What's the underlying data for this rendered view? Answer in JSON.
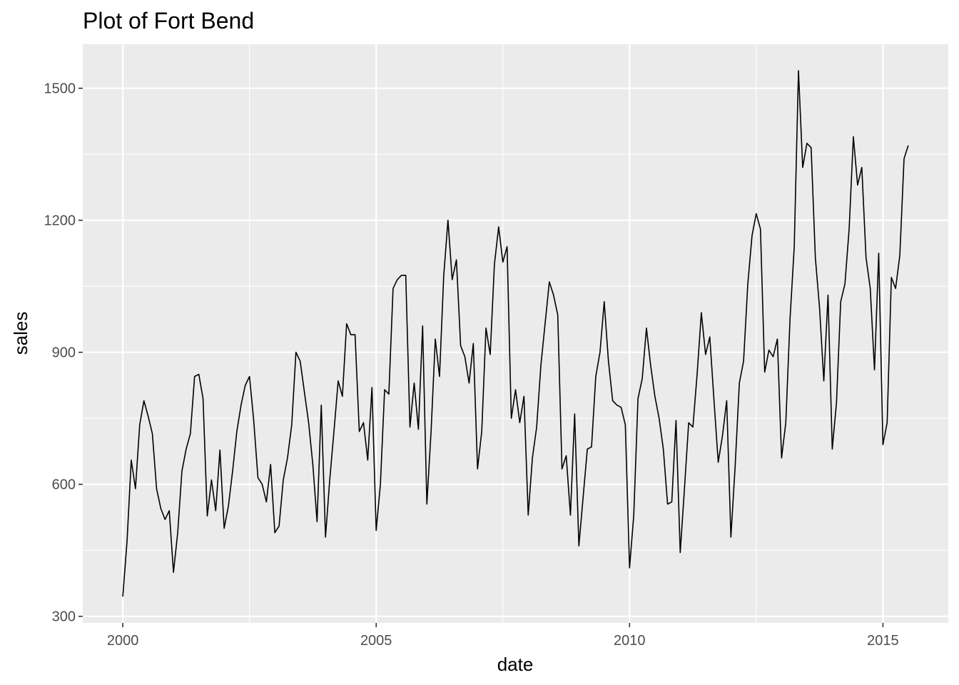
{
  "chart_data": {
    "type": "line",
    "title": "Plot of Fort Bend",
    "xlabel": "date",
    "ylabel": "sales",
    "x_ticks": [
      2000,
      2005,
      2010,
      2015
    ],
    "x_tick_labels": [
      "2000",
      "2005",
      "2010",
      "2015"
    ],
    "y_ticks": [
      300,
      600,
      900,
      1200,
      1500
    ],
    "y_tick_labels": [
      "300",
      "600",
      "900",
      "1200",
      "1500"
    ],
    "xlim": [
      1999.21,
      2016.29
    ],
    "ylim": [
      285,
      1600
    ],
    "grid": true,
    "legend": "none",
    "colors": {
      "panel_background": "#ebebeb",
      "grid": "#ffffff",
      "line": "#000000",
      "tick_text": "#4d4d4d"
    },
    "series": [
      {
        "x_start": 2000.0,
        "step": 0.0833333,
        "values": [
          345,
          470,
          655,
          590,
          735,
          790,
          755,
          715,
          590,
          545,
          520,
          540,
          400,
          490,
          630,
          680,
          715,
          845,
          850,
          795,
          528,
          610,
          540,
          678,
          500,
          550,
          630,
          720,
          780,
          825,
          845,
          745,
          615,
          600,
          560,
          645,
          490,
          505,
          610,
          660,
          735,
          900,
          880,
          810,
          740,
          645,
          515,
          780,
          480,
          610,
          720,
          835,
          800,
          965,
          940,
          940,
          720,
          740,
          655,
          820,
          495,
          600,
          815,
          805,
          1045,
          1065,
          1075,
          1075,
          730,
          830,
          725,
          960,
          555,
          720,
          930,
          845,
          1075,
          1200,
          1065,
          1110,
          915,
          890,
          830,
          920,
          635,
          720,
          955,
          895,
          1100,
          1185,
          1105,
          1140,
          750,
          815,
          740,
          800,
          530,
          660,
          730,
          870,
          965,
          1060,
          1030,
          985,
          635,
          665,
          530,
          760,
          460,
          570,
          680,
          685,
          845,
          900,
          1015,
          880,
          790,
          780,
          775,
          735,
          410,
          530,
          795,
          840,
          955,
          870,
          800,
          750,
          680,
          555,
          560,
          745,
          445,
          590,
          740,
          730,
          850,
          990,
          895,
          935,
          790,
          650,
          710,
          790,
          480,
          640,
          830,
          880,
          1055,
          1165,
          1215,
          1180,
          855,
          905,
          890,
          930,
          660,
          740,
          975,
          1140,
          1540,
          1320,
          1375,
          1365,
          1115,
          1000,
          835,
          1030,
          680,
          785,
          1015,
          1055,
          1180,
          1390,
          1280,
          1320,
          1115,
          1045,
          860,
          1125,
          690,
          740,
          1070,
          1045,
          1120,
          1340,
          1370
        ]
      }
    ]
  }
}
